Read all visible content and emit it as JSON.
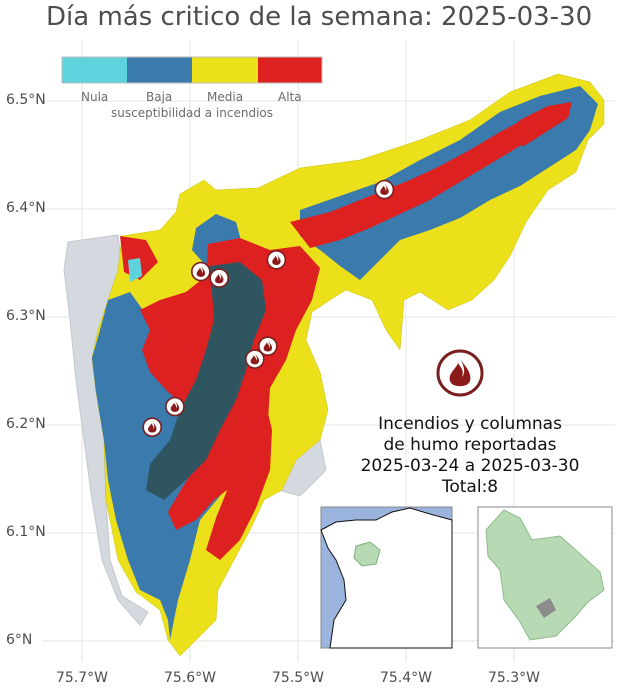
{
  "title": "Día más critico de la semana: 2025-03-30",
  "axes": {
    "y_ticks": [
      "6.5°N",
      "6.4°N",
      "6.3°N",
      "6.2°N",
      "6.1°N",
      "6°N"
    ],
    "x_ticks": [
      "75.7°W",
      "75.6°W",
      "75.5°W",
      "75.4°W",
      "75.3°W"
    ]
  },
  "legend": {
    "title": "susceptibilidad a incendios",
    "items": [
      {
        "label": "Nula",
        "color": "#5fd3dd"
      },
      {
        "label": "Baja",
        "color": "#3b7aad"
      },
      {
        "label": "Media",
        "color": "#ece01a"
      },
      {
        "label": "Alta",
        "color": "#dd2020"
      }
    ]
  },
  "fires": {
    "line1": "Incendios y columnas",
    "line2": "de humo reportadas",
    "line3": "2025-03-24 a 2025-03-30",
    "line4": "Total:8",
    "points": [
      {
        "lon": -75.42,
        "lat": 6.418
      },
      {
        "lon": -75.52,
        "lat": 6.353
      },
      {
        "lon": -75.59,
        "lat": 6.342
      },
      {
        "lon": -75.573,
        "lat": 6.336
      },
      {
        "lon": -75.528,
        "lat": 6.273
      },
      {
        "lon": -75.54,
        "lat": 6.261
      },
      {
        "lon": -75.614,
        "lat": 6.217
      },
      {
        "lon": -75.635,
        "lat": 6.198
      }
    ]
  },
  "colors": {
    "background_land": "#d4d8df",
    "inset_water": "#9ab4de",
    "inset_region": "#b7dab4"
  }
}
